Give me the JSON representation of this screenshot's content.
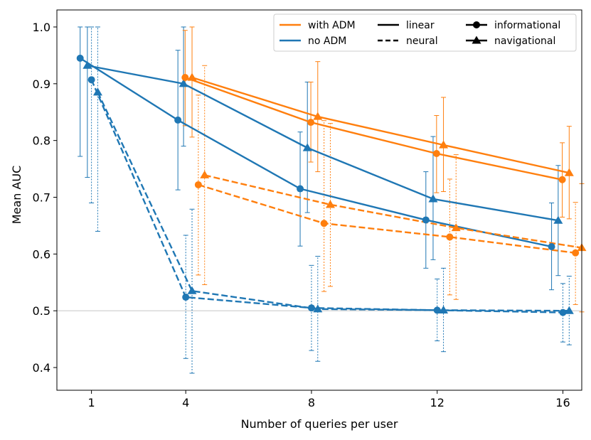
{
  "chart_data": {
    "type": "line",
    "title": "",
    "xlabel": "Number of queries per user",
    "ylabel": "Mean AUC",
    "x_ticks": [
      1,
      4,
      8,
      12,
      16
    ],
    "y_ticks": [
      "0.4",
      "0.5",
      "0.6",
      "0.7",
      "0.8",
      "0.9",
      "1.0"
    ],
    "xlim": [
      -0.1,
      16.6
    ],
    "ylim": [
      0.36,
      1.03
    ],
    "reference_line": 0.5,
    "colors": {
      "with_adm": "#ff7f0e",
      "no_adm": "#1f77b4",
      "reference": "#cccccc"
    },
    "legend": {
      "position": "top-right",
      "entries": [
        {
          "label": "with ADM",
          "kind": "color",
          "color": "#ff7f0e"
        },
        {
          "label": "no ADM",
          "kind": "color",
          "color": "#1f77b4"
        },
        {
          "label": "linear",
          "kind": "linestyle",
          "dash": false
        },
        {
          "label": "neural",
          "kind": "linestyle",
          "dash": true
        },
        {
          "label": "informational",
          "kind": "marker",
          "marker": "circle"
        },
        {
          "label": "navigational",
          "kind": "marker",
          "marker": "triangle"
        }
      ]
    },
    "series": [
      {
        "name": "no ADM, linear, informational",
        "adm": false,
        "model": "linear",
        "query_type": "informational",
        "x": [
          0.64,
          3.75,
          7.64,
          11.64,
          15.64
        ],
        "values": [
          0.945,
          0.836,
          0.715,
          0.66,
          0.613
        ],
        "err_low": [
          0.772,
          0.713,
          0.614,
          0.575,
          0.537
        ],
        "err_high": [
          1.0,
          0.959,
          0.815,
          0.745,
          0.69
        ]
      },
      {
        "name": "no ADM, linear, navigational",
        "adm": false,
        "model": "linear",
        "query_type": "navigational",
        "x": [
          0.87,
          3.93,
          7.87,
          11.87,
          15.85
        ],
        "values": [
          0.932,
          0.9,
          0.787,
          0.697,
          0.659
        ],
        "err_low": [
          0.735,
          0.79,
          0.673,
          0.59,
          0.562
        ],
        "err_high": [
          1.0,
          1.0,
          0.903,
          0.807,
          0.756
        ]
      },
      {
        "name": "no ADM, neural, informational",
        "adm": false,
        "model": "neural",
        "query_type": "informational",
        "x": [
          1.0,
          4.0,
          8.0,
          12.0,
          16.0
        ],
        "values": [
          0.907,
          0.524,
          0.505,
          0.501,
          0.497
        ],
        "err_low": [
          0.69,
          0.416,
          0.43,
          0.447,
          0.445
        ],
        "err_high": [
          1.0,
          0.633,
          0.58,
          0.556,
          0.548
        ]
      },
      {
        "name": "no ADM, neural, navigational",
        "adm": false,
        "model": "neural",
        "query_type": "navigational",
        "x": [
          1.2,
          4.2,
          8.2,
          12.2,
          16.2
        ],
        "values": [
          0.885,
          0.535,
          0.503,
          0.501,
          0.5
        ],
        "err_low": [
          0.64,
          0.39,
          0.411,
          0.428,
          0.44
        ],
        "err_high": [
          1.0,
          0.679,
          0.596,
          0.575,
          0.561
        ]
      },
      {
        "name": "with ADM, linear, informational",
        "adm": true,
        "model": "linear",
        "query_type": "informational",
        "x": [
          3.98,
          7.98,
          11.98,
          15.98
        ],
        "values": [
          0.911,
          0.832,
          0.777,
          0.731
        ],
        "err_low": [
          0.826,
          0.762,
          0.708,
          0.665
        ],
        "err_high": [
          0.994,
          0.903,
          0.844,
          0.796
        ]
      },
      {
        "name": "with ADM, linear, navigational",
        "adm": true,
        "model": "linear",
        "query_type": "navigational",
        "x": [
          4.2,
          8.2,
          12.2,
          16.2
        ],
        "values": [
          0.911,
          0.842,
          0.792,
          0.743
        ],
        "err_low": [
          0.806,
          0.745,
          0.71,
          0.662
        ],
        "err_high": [
          1.0,
          0.939,
          0.876,
          0.825
        ]
      },
      {
        "name": "with ADM, neural, informational",
        "adm": true,
        "model": "neural",
        "query_type": "informational",
        "x": [
          4.4,
          8.4,
          12.4,
          16.4
        ],
        "values": [
          0.722,
          0.654,
          0.63,
          0.602
        ],
        "err_low": [
          0.563,
          0.534,
          0.528,
          0.511
        ],
        "err_high": [
          0.88,
          0.835,
          0.732,
          0.691
        ]
      },
      {
        "name": "with ADM, neural, navigational",
        "adm": true,
        "model": "neural",
        "query_type": "navigational",
        "x": [
          4.6,
          8.6,
          12.6,
          16.6
        ],
        "values": [
          0.739,
          0.687,
          0.646,
          0.611
        ],
        "err_low": [
          0.546,
          0.543,
          0.52,
          0.498
        ],
        "err_high": [
          0.932,
          0.83,
          0.775,
          0.724
        ]
      }
    ]
  }
}
